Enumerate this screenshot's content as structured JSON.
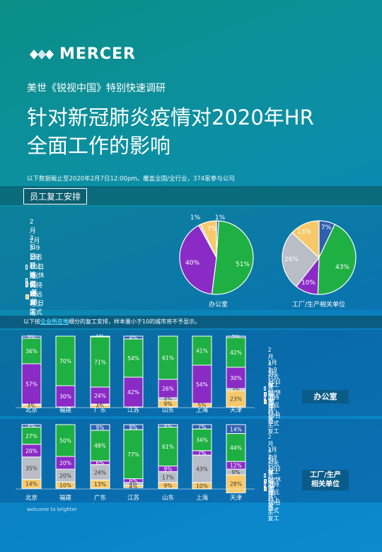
{
  "header": {
    "logo_text": "MERCER",
    "subtitle": "美世《锐视中国》特别快速调研",
    "title_line1": "针对新冠肺炎疫情对2020年HR",
    "title_line2": "全面工作的影响",
    "note": "以下数据截止至2020年2月7日12:00pm。覆盖全国/全行业，374家参与公司"
  },
  "section_tab": "员工复工安排",
  "legend": {
    "items": [
      "2月3日已开始正式复工",
      "2月3-9日远程上班/休假日，10日正式复工",
      "2月10日后，仍持续远程上班",
      "不适用",
      "其他"
    ]
  },
  "colors": {
    "s1": "#2e5fb0",
    "s2": "#1fb043",
    "s3": "#8a2bc6",
    "s4": "#b8bdc6",
    "s5": "#f7c96a",
    "tag_bg": "#0b5b88"
  },
  "band2": {
    "prefix": "以下按",
    "emph": "企业所在地",
    "suffix": "细分的复工安排，样本量小于10的城市将不予显示。"
  },
  "tags": {
    "office": "办公室",
    "factory_line1": "工厂/生产",
    "factory_line2": "相关单位"
  },
  "footer": "welcome to brighter",
  "chart_data": [
    {
      "type": "pie",
      "caption": "办公室",
      "labels": [
        "2月3日已开始正式复工",
        "2月3-9日远程上班/休假日，10日正式复工",
        "2月10日后，仍持续远程上班",
        "不适用",
        "其他"
      ],
      "values": [
        1,
        51,
        40,
        1,
        7
      ],
      "value_labels": [
        "1%",
        "51%",
        "40%",
        "1%",
        "7%"
      ]
    },
    {
      "type": "pie",
      "caption": "工厂/生产相关单位",
      "labels": [
        "2月3日已开始正式复工",
        "2月3-9日远程上班/休假日，10日正式复工",
        "2月10日后，仍持续远程上班",
        "不适用",
        "其他"
      ],
      "values": [
        7,
        43,
        10,
        26,
        13
      ],
      "value_labels": [
        "7%",
        "43%",
        "10%",
        "26%",
        "13%"
      ]
    },
    {
      "type": "bar",
      "stacked": true,
      "group": "办公室",
      "categories": [
        "北京",
        "福建",
        "广东",
        "江苏",
        "山东",
        "上海",
        "天津"
      ],
      "series": [
        {
          "name": "2月3日已开始正式复工",
          "values": [
            3,
            0,
            1,
            4,
            0,
            0,
            2
          ]
        },
        {
          "name": "2月3-9日远程上班/休假日，10日正式复工",
          "values": [
            36,
            70,
            71,
            54,
            61,
            41,
            42
          ]
        },
        {
          "name": "2月10日后，仍持续远程上班",
          "values": [
            57,
            30,
            24,
            42,
            26,
            54,
            30
          ]
        },
        {
          "name": "不适用",
          "values": [
            1,
            0,
            1,
            0,
            4,
            0,
            3
          ]
        },
        {
          "name": "其他",
          "values": [
            4,
            0,
            4,
            0,
            9,
            5,
            23
          ]
        }
      ],
      "data_labels": [
        [
          "3%",
          "",
          "1%",
          "4%",
          "",
          "",
          "2%"
        ],
        [
          "36%",
          "70%",
          "71%",
          "54%",
          "61%",
          "41%",
          "42%"
        ],
        [
          "57%",
          "30%",
          "24%",
          "42%",
          "26%",
          "54%",
          "30%"
        ],
        [
          "1%",
          "",
          "1%",
          "",
          "4%",
          "",
          "3%"
        ],
        [
          "4%",
          "",
          "4%",
          "",
          "9%",
          "5%",
          "23%"
        ]
      ]
    },
    {
      "type": "bar",
      "stacked": true,
      "group": "工厂/生产相关单位",
      "categories": [
        "北京",
        "福建",
        "广东",
        "江苏",
        "山东",
        "上海",
        "天津"
      ],
      "series": [
        {
          "name": "2月3日已开始正式复工",
          "values": [
            4,
            0,
            9,
            8,
            4,
            7,
            14
          ]
        },
        {
          "name": "2月3-9日远程上班/休假日，10日正式复工",
          "values": [
            27,
            50,
            48,
            77,
            61,
            34,
            44
          ]
        },
        {
          "name": "2月10日后，仍持续远程上班",
          "values": [
            20,
            20,
            6,
            6,
            9,
            7,
            12
          ]
        },
        {
          "name": "不适用",
          "values": [
            35,
            20,
            24,
            4,
            17,
            43,
            9
          ]
        },
        {
          "name": "其他",
          "values": [
            14,
            10,
            13,
            4,
            9,
            10,
            28
          ]
        }
      ],
      "data_labels": [
        [
          "4%",
          "",
          "9%",
          "8%",
          "4%",
          "7%",
          "14%"
        ],
        [
          "27%",
          "50%",
          "48%",
          "77%",
          "61%",
          "34%",
          "44%"
        ],
        [
          "20%",
          "20%",
          "6%",
          "6%",
          "9%",
          "7%",
          "12%"
        ],
        [
          "35%",
          "20%",
          "24%",
          "4%",
          "17%",
          "43%",
          "9%"
        ],
        [
          "14%",
          "10%",
          "13%",
          "4%",
          "9%",
          "10%",
          "28%"
        ]
      ]
    }
  ]
}
